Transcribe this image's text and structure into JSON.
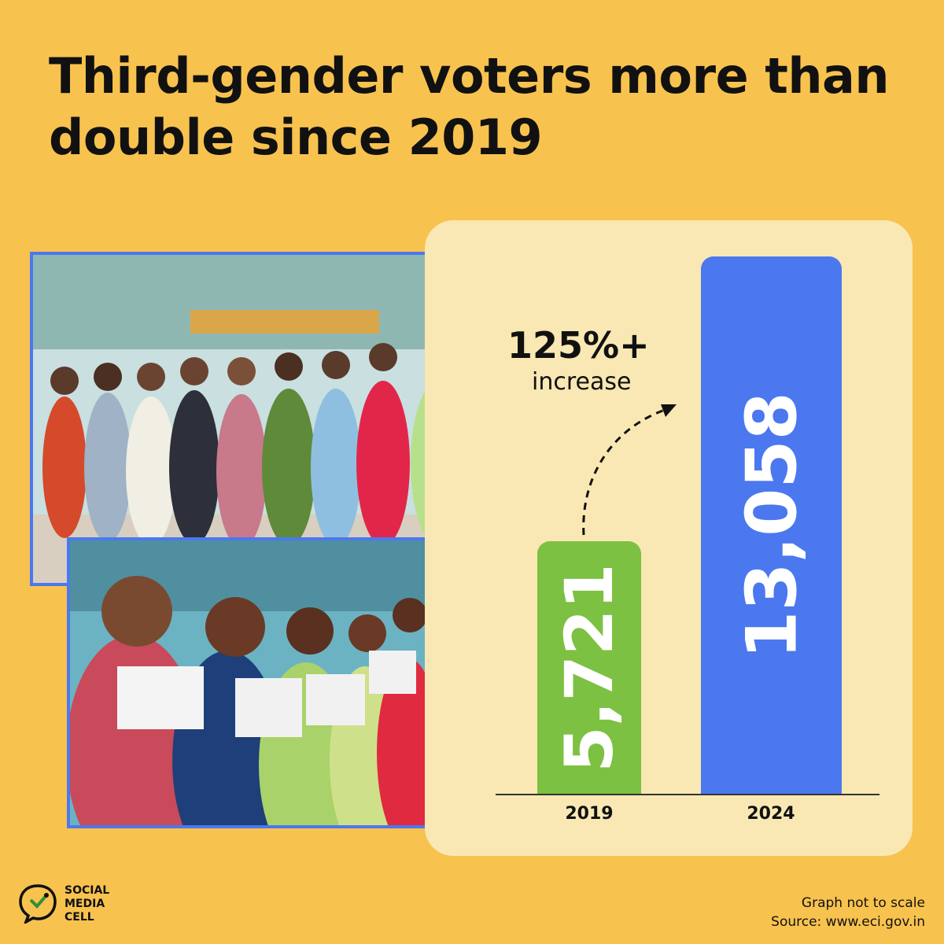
{
  "title": "Third-gender voters more than double since 2019",
  "chart_data": {
    "type": "bar",
    "categories": [
      "2019",
      "2024"
    ],
    "values": [
      5721,
      13058
    ],
    "value_labels": [
      "5,721",
      "13,058"
    ],
    "annotation": {
      "value": "125%+",
      "text": "increase"
    },
    "colors": [
      "#7cc142",
      "#4b78ef"
    ],
    "ylim": [
      0,
      13058
    ],
    "grid": false
  },
  "footer": {
    "brand_lines": [
      "SOCIAL",
      "MEDIA",
      "CELL"
    ],
    "note": "Graph not to scale",
    "source": "Source: www.eci.gov.in"
  },
  "photos": [
    {
      "subject": "voters showing inked fingers"
    },
    {
      "subject": "voters holding voter ID cards"
    }
  ],
  "colors": {
    "background": "#f8c24f",
    "panel": "#f9e8b3",
    "photo_border": "#4b78ef"
  }
}
